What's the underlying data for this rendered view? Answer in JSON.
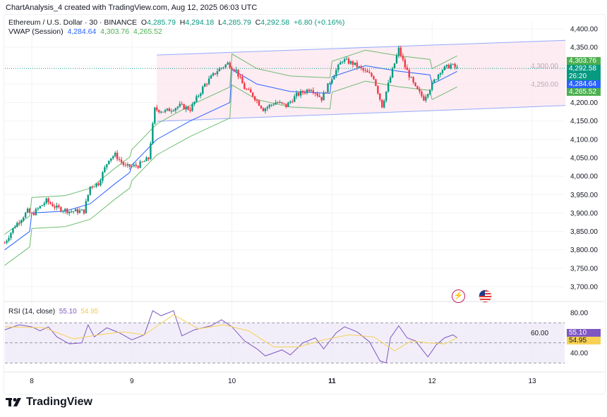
{
  "credit": "ChartAnalysis_4 created with TradingView.com, Aug 12, 2025 06:03 UTC",
  "legend": {
    "symbol": "Ethereum / U.S. Dollar · 30 · BINANCE",
    "o_label": "O",
    "o": "4,285.79",
    "h_label": "H",
    "h": "4,294.18",
    "l_label": "L",
    "l": "4,285.79",
    "c_label": "C",
    "c": "4,292.58",
    "change": "+6.80 (+0.16%)",
    "vwap_label": "VWAP (Session)",
    "vwap": "4,284.64",
    "vwap_upper": "4,303.76",
    "vwap_lower": "4,265.52"
  },
  "price_tags": {
    "upper": "4,303.76",
    "close": "4,292.58",
    "countdown": "26:20",
    "vwap": "4,284.64",
    "lower": "4,265.52"
  },
  "rsi_legend": {
    "label": "RSI (14, close)",
    "rsi": "55.10",
    "ma": "54.95"
  },
  "rsi_tags": {
    "rsi": "55.10",
    "ma": "54.95"
  },
  "icons": [
    "flash-icon",
    "us-flag-icon"
  ],
  "brand": "TradingView",
  "colors": {
    "up": "#089981",
    "down": "#f23645",
    "vwap": "#2962ff",
    "band": "#4caf50",
    "channel": "#2962ff",
    "channel_fill": "#fce4ec",
    "rsi": "#7e57c2",
    "rsi_ma": "#f7d154",
    "tag_purple": "#7e57c2",
    "tag_yellow": "#f7d154"
  },
  "chart_data": [
    {
      "type": "candlestick",
      "title": "Ethereum / U.S. Dollar · 30 · BINANCE",
      "x_ticks": [
        "8",
        "9",
        "10",
        "11",
        "12",
        "13"
      ],
      "y_ticks": [
        "4,400.00",
        "4,350.00",
        "4,300.00",
        "4,250.00",
        "4,200.00",
        "4,150.00",
        "4,100.00",
        "4,050.00",
        "4,000.00",
        "3,950.00",
        "3,900.00",
        "3,850.00",
        "3,800.00",
        "3,750.00",
        "3,700.00"
      ],
      "ylim": [
        3700,
        4400
      ],
      "xlim": [
        "2025-08-07 17:00",
        "2025-08-13 08:00"
      ],
      "close_series": [
        [
          "2025-08-07 17:30",
          3819
        ],
        [
          "2025-08-07 20:00",
          3866
        ],
        [
          "2025-08-07 23:00",
          3905
        ],
        [
          "2025-08-08 00:00",
          3895
        ],
        [
          "2025-08-08 03:30",
          3933
        ],
        [
          "2025-08-08 06:00",
          3914
        ],
        [
          "2025-08-08 09:00",
          3905
        ],
        [
          "2025-08-08 12:30",
          3905
        ],
        [
          "2025-08-08 14:00",
          3972
        ],
        [
          "2025-08-08 16:00",
          3981
        ],
        [
          "2025-08-08 18:30",
          4048
        ],
        [
          "2025-08-08 20:00",
          4058
        ],
        [
          "2025-08-08 22:30",
          4025
        ],
        [
          "2025-08-09 01:30",
          4029
        ],
        [
          "2025-08-09 04:00",
          4048
        ],
        [
          "2025-08-09 05:30",
          4182
        ],
        [
          "2025-08-09 08:00",
          4176
        ],
        [
          "2025-08-09 11:30",
          4191
        ],
        [
          "2025-08-09 14:00",
          4182
        ],
        [
          "2025-08-09 17:30",
          4249
        ],
        [
          "2025-08-09 20:30",
          4287
        ],
        [
          "2025-08-09 23:00",
          4306
        ],
        [
          "2025-08-10 01:00",
          4287
        ],
        [
          "2025-08-10 03:00",
          4239
        ],
        [
          "2025-08-10 05:00",
          4220
        ],
        [
          "2025-08-10 07:30",
          4182
        ],
        [
          "2025-08-10 10:30",
          4201
        ],
        [
          "2025-08-10 13:00",
          4191
        ],
        [
          "2025-08-10 15:30",
          4220
        ],
        [
          "2025-08-10 19:00",
          4239
        ],
        [
          "2025-08-10 21:30",
          4211
        ],
        [
          "2025-08-11 00:00",
          4268
        ],
        [
          "2025-08-11 02:30",
          4316
        ],
        [
          "2025-08-11 05:00",
          4306
        ],
        [
          "2025-08-11 07:30",
          4287
        ],
        [
          "2025-08-11 10:00",
          4268
        ],
        [
          "2025-08-11 12:00",
          4191
        ],
        [
          "2025-08-11 13:30",
          4249
        ],
        [
          "2025-08-11 16:00",
          4345
        ],
        [
          "2025-08-11 17:30",
          4297
        ],
        [
          "2025-08-11 20:00",
          4239
        ],
        [
          "2025-08-11 22:00",
          4211
        ],
        [
          "2025-08-12 00:00",
          4249
        ],
        [
          "2025-08-12 02:00",
          4287
        ],
        [
          "2025-08-12 04:30",
          4302
        ],
        [
          "2025-08-12 06:00",
          4292.58
        ]
      ],
      "vwap_series": [
        [
          "2025-08-07 17:30",
          3800
        ],
        [
          "2025-08-07 23:30",
          3850
        ],
        [
          "2025-08-08 00:00",
          3900
        ],
        [
          "2025-08-08 08:00",
          3905
        ],
        [
          "2025-08-08 14:00",
          3925
        ],
        [
          "2025-08-08 20:00",
          3980
        ],
        [
          "2025-08-08 23:30",
          4010
        ],
        [
          "2025-08-09 00:00",
          4030
        ],
        [
          "2025-08-09 06:00",
          4100
        ],
        [
          "2025-08-09 14:00",
          4150
        ],
        [
          "2025-08-09 23:30",
          4200
        ],
        [
          "2025-08-10 00:00",
          4290
        ],
        [
          "2025-08-10 06:00",
          4250
        ],
        [
          "2025-08-10 14:00",
          4230
        ],
        [
          "2025-08-10 23:30",
          4225
        ],
        [
          "2025-08-11 00:00",
          4270
        ],
        [
          "2025-08-11 08:00",
          4300
        ],
        [
          "2025-08-11 16:00",
          4285
        ],
        [
          "2025-08-11 23:30",
          4275
        ],
        [
          "2025-08-12 00:00",
          4250
        ],
        [
          "2025-08-12 06:00",
          4284.64
        ]
      ],
      "channel": {
        "upper": [
          [
            "2025-08-09 06:00",
            4329
          ],
          [
            "2025-08-13 08:00",
            4369
          ]
        ],
        "lower": [
          [
            "2025-08-09 06:00",
            4149
          ],
          [
            "2025-08-13 08:00",
            4192
          ]
        ]
      },
      "last": {
        "close": 4292.58,
        "vwap": 4284.64,
        "vwap_upper": 4303.76,
        "vwap_lower": 4265.52
      }
    },
    {
      "type": "line",
      "title": "RSI (14, close)",
      "y_ticks": [
        "80.00",
        "60.00",
        "40.00"
      ],
      "ylim": [
        25,
        85
      ],
      "levels": [
        70,
        50,
        30
      ],
      "series": [
        {
          "name": "RSI",
          "values": [
            [
              "2025-08-07 17:30",
              63
            ],
            [
              "2025-08-07 21:00",
              68
            ],
            [
              "2025-08-08 00:00",
              66
            ],
            [
              "2025-08-08 02:00",
              62
            ],
            [
              "2025-08-08 04:00",
              66
            ],
            [
              "2025-08-08 06:00",
              56
            ],
            [
              "2025-08-08 09:00",
              49
            ],
            [
              "2025-08-08 12:00",
              50
            ],
            [
              "2025-08-08 13:30",
              68
            ],
            [
              "2025-08-08 15:00",
              56
            ],
            [
              "2025-08-08 18:00",
              65
            ],
            [
              "2025-08-08 21:00",
              60
            ],
            [
              "2025-08-09 00:00",
              53
            ],
            [
              "2025-08-09 03:00",
              58
            ],
            [
              "2025-08-09 05:00",
              82
            ],
            [
              "2025-08-09 07:00",
              77
            ],
            [
              "2025-08-09 10:00",
              82
            ],
            [
              "2025-08-09 12:00",
              57
            ],
            [
              "2025-08-09 15:00",
              63
            ],
            [
              "2025-08-09 19:00",
              67
            ],
            [
              "2025-08-09 21:30",
              73
            ],
            [
              "2025-08-10 00:00",
              66
            ],
            [
              "2025-08-10 03:00",
              52
            ],
            [
              "2025-08-10 06:00",
              44
            ],
            [
              "2025-08-10 08:00",
              37
            ],
            [
              "2025-08-10 12:00",
              43
            ],
            [
              "2025-08-10 14:00",
              38
            ],
            [
              "2025-08-10 17:00",
              50
            ],
            [
              "2025-08-10 20:00",
              55
            ],
            [
              "2025-08-10 22:00",
              44
            ],
            [
              "2025-08-11 01:00",
              60
            ],
            [
              "2025-08-11 03:00",
              66
            ],
            [
              "2025-08-11 06:00",
              61
            ],
            [
              "2025-08-11 09:00",
              51
            ],
            [
              "2025-08-11 11:30",
              32
            ],
            [
              "2025-08-11 13:00",
              30
            ],
            [
              "2025-08-11 14:00",
              55
            ],
            [
              "2025-08-11 16:00",
              67
            ],
            [
              "2025-08-11 18:00",
              55
            ],
            [
              "2025-08-11 20:00",
              52
            ],
            [
              "2025-08-11 23:00",
              36
            ],
            [
              "2025-08-12 01:00",
              48
            ],
            [
              "2025-08-12 03:00",
              55
            ],
            [
              "2025-08-12 05:00",
              58
            ],
            [
              "2025-08-12 06:00",
              55.1
            ]
          ]
        },
        {
          "name": "RSI-based MA",
          "values": [
            [
              "2025-08-07 17:30",
              66
            ],
            [
              "2025-08-08 03:00",
              65
            ],
            [
              "2025-08-08 10:00",
              54
            ],
            [
              "2025-08-08 16:00",
              58
            ],
            [
              "2025-08-08 22:00",
              61
            ],
            [
              "2025-08-09 03:00",
              58
            ],
            [
              "2025-08-09 10:00",
              78
            ],
            [
              "2025-08-09 16:00",
              64
            ],
            [
              "2025-08-09 22:00",
              68
            ],
            [
              "2025-08-10 04:00",
              62
            ],
            [
              "2025-08-10 10:00",
              46
            ],
            [
              "2025-08-10 16:00",
              46
            ],
            [
              "2025-08-10 22:00",
              53
            ],
            [
              "2025-08-11 04:00",
              58
            ],
            [
              "2025-08-11 10:00",
              56
            ],
            [
              "2025-08-11 15:00",
              42
            ],
            [
              "2025-08-11 19:00",
              52
            ],
            [
              "2025-08-11 23:00",
              50
            ],
            [
              "2025-08-12 03:00",
              49
            ],
            [
              "2025-08-12 06:00",
              54.95
            ]
          ]
        }
      ]
    }
  ]
}
